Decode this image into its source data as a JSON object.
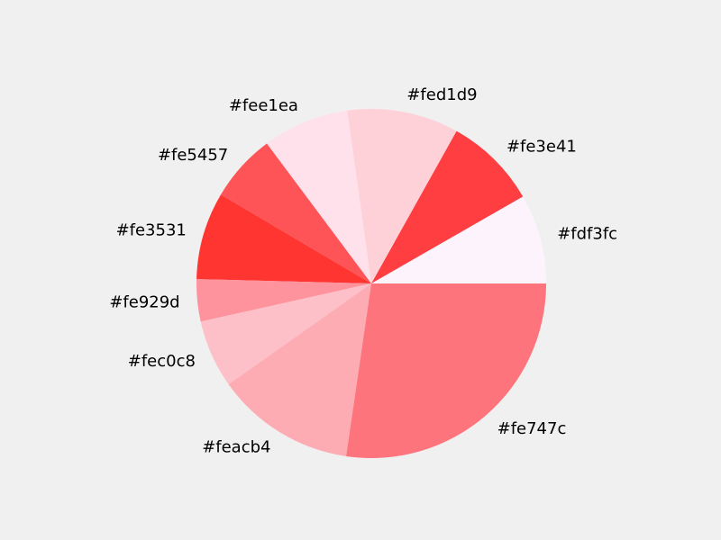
{
  "chart_data": {
    "type": "pie",
    "title": "",
    "start_angle_deg": 0,
    "direction": "counterclockwise",
    "slices": [
      {
        "label": "#fdf3fc",
        "value": 8.3,
        "color": "#fdf3fc"
      },
      {
        "label": "#fe3e41",
        "value": 8.6,
        "color": "#fe3e41"
      },
      {
        "label": "#fed1d9",
        "value": 10.3,
        "color": "#fed1d9"
      },
      {
        "label": "#fee1ea",
        "value": 8.0,
        "color": "#fee1ea"
      },
      {
        "label": "#fe5457",
        "value": 6.3,
        "color": "#fe5457"
      },
      {
        "label": "#fe3531",
        "value": 8.1,
        "color": "#fe3531"
      },
      {
        "label": "#fe929d",
        "value": 3.9,
        "color": "#fe929d"
      },
      {
        "label": "#fec0c8",
        "value": 6.3,
        "color": "#fec0c8"
      },
      {
        "label": "#feacb4",
        "value": 12.9,
        "color": "#feacb4"
      },
      {
        "label": "#fe747c",
        "value": 27.3,
        "color": "#fe747c"
      }
    ]
  }
}
